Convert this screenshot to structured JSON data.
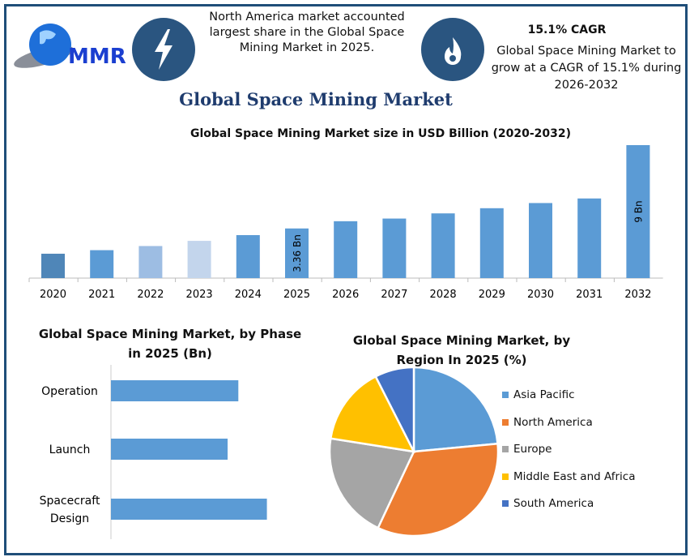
{
  "logo": {
    "text": "MMR"
  },
  "header": {
    "left_icon": "lightning-icon",
    "left_text": "North America market accounted largest share in the Global Space Mining Market in 2025.",
    "right_icon": "flame-icon",
    "cagr_title": "15.1% CAGR",
    "cagr_text": "Global Space Mining Market to grow at a CAGR of 15.1% during 2026-2032"
  },
  "page_title": "Global Space Mining Market",
  "chart_data": [
    {
      "type": "bar",
      "title": "Global Space Mining Market size in USD Billion (2020-2032)",
      "categories": [
        "2020",
        "2021",
        "2022",
        "2023",
        "2024",
        "2025",
        "2026",
        "2027",
        "2028",
        "2029",
        "2030",
        "2031",
        "2032"
      ],
      "values": [
        1.65,
        1.89,
        2.17,
        2.52,
        2.91,
        3.36,
        3.85,
        4.03,
        4.38,
        4.73,
        5.08,
        5.39,
        9
      ],
      "data_labels": {
        "2025": "3.36 Bn",
        "2032": "9 Bn"
      },
      "colors": [
        "#4f86b8",
        "#5b9bd5",
        "#9dbde3",
        "#c3d5ec",
        "#5b9bd5",
        "#5b9bd5",
        "#5b9bd5",
        "#5b9bd5",
        "#5b9bd5",
        "#5b9bd5",
        "#5b9bd5",
        "#5b9bd5",
        "#5b9bd5"
      ],
      "ylim": [
        0,
        9
      ],
      "grid": false
    },
    {
      "type": "bar",
      "orientation": "horizontal",
      "title": "Global Space Mining Market, by Phase in 2025 (Bn)",
      "categories": [
        "Operation",
        "Launch",
        "Spacecraft Design"
      ],
      "values": [
        1.07,
        0.98,
        1.31
      ],
      "color": "#5b9bd5"
    },
    {
      "type": "pie",
      "title": "Global Space Mining Market, by Region In 2025 (%)",
      "categories": [
        "Asia Pacific",
        "North America",
        "Europe",
        "Middle East and Africa",
        "South America"
      ],
      "values": [
        23.5,
        33.5,
        20.5,
        15,
        7.5
      ],
      "colors": [
        "#5b9bd5",
        "#ed7d31",
        "#a5a5a5",
        "#ffc000",
        "#4472c4"
      ],
      "legend": "right"
    }
  ]
}
